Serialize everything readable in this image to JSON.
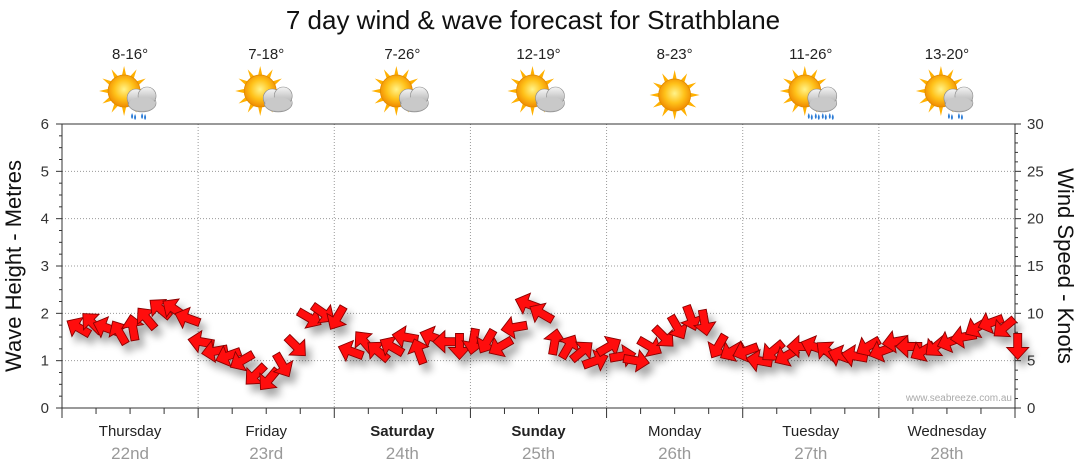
{
  "chart_data": {
    "type": "line",
    "title": "7 day wind & wave forecast for Strathblane",
    "left_axis": {
      "label": "Wave Height - Metres",
      "ylim": [
        0,
        6
      ],
      "ticks": [
        "0",
        "1",
        "2",
        "3",
        "4",
        "5",
        "6"
      ]
    },
    "right_axis": {
      "label": "Wind Speed - Knots",
      "ylim": [
        0,
        30
      ],
      "ticks": [
        "0",
        "5",
        "10",
        "15",
        "20",
        "25",
        "30"
      ]
    },
    "watermark": "www.seabreeze.com.au",
    "days": [
      {
        "name": "Thursday",
        "date": "22nd",
        "temp": "8-16°",
        "weather": "showers",
        "bold": false
      },
      {
        "name": "Friday",
        "date": "23rd",
        "temp": "7-18°",
        "weather": "partly-cloudy",
        "bold": false
      },
      {
        "name": "Saturday",
        "date": "24th",
        "temp": "7-26°",
        "weather": "partly-cloudy",
        "bold": true
      },
      {
        "name": "Sunday",
        "date": "25th",
        "temp": "12-19°",
        "weather": "partly-cloudy",
        "bold": true
      },
      {
        "name": "Monday",
        "date": "26th",
        "temp": "8-23°",
        "weather": "sunny",
        "bold": false
      },
      {
        "name": "Tuesday",
        "date": "27th",
        "temp": "11-26°",
        "weather": "rain",
        "bold": false
      },
      {
        "name": "Wednesday",
        "date": "28th",
        "temp": "13-20°",
        "weather": "showers",
        "bold": false
      }
    ],
    "wind_series": {
      "name": "Wind Speed (knots) with direction",
      "x_days": [
        0.0,
        0.1,
        0.2,
        0.3,
        0.4,
        0.5,
        0.6,
        0.7,
        0.8,
        0.9,
        1.0,
        1.1,
        1.2,
        1.3,
        1.4,
        1.5,
        1.6,
        1.7,
        1.8,
        1.9,
        2.0,
        2.1,
        2.2,
        2.3,
        2.4,
        2.5,
        2.6,
        2.7,
        2.8,
        2.9,
        3.0,
        3.1,
        3.2,
        3.3,
        3.4,
        3.5,
        3.6,
        3.7,
        3.8,
        3.9,
        4.0,
        4.1,
        4.2,
        4.3,
        4.4,
        4.5,
        4.6,
        4.7,
        4.8,
        4.9,
        5.0,
        5.1,
        5.2,
        5.3,
        5.4,
        5.5,
        5.6,
        5.7,
        5.8,
        5.9,
        6.0,
        6.1,
        6.2,
        6.3,
        6.4,
        6.5,
        6.6,
        6.7,
        6.8,
        6.9
      ],
      "knots": [
        8.5,
        9.0,
        8.5,
        8.0,
        8.5,
        9.5,
        10.5,
        10.5,
        9.5,
        7.0,
        6.0,
        5.5,
        5.0,
        3.5,
        3.0,
        4.5,
        6.5,
        9.5,
        10.0,
        9.5,
        6.0,
        7.0,
        6.0,
        6.5,
        7.5,
        6.0,
        7.5,
        7.0,
        6.5,
        7.0,
        7.0,
        6.5,
        8.5,
        11.0,
        10.0,
        7.0,
        6.5,
        6.0,
        5.0,
        6.5,
        5.5,
        5.0,
        6.5,
        7.5,
        8.5,
        9.5,
        9.0,
        6.5,
        6.0,
        6.0,
        5.0,
        6.0,
        5.5,
        6.5,
        6.5,
        6.0,
        5.5,
        5.5,
        6.5,
        6.0,
        7.0,
        6.5,
        6.0,
        6.5,
        7.0,
        7.5,
        8.5,
        9.0,
        8.5,
        6.5
      ],
      "direction_deg": [
        210,
        225,
        200,
        240,
        260,
        230,
        220,
        215,
        200,
        190,
        170,
        160,
        150,
        135,
        130,
        60,
        45,
        30,
        35,
        120,
        200,
        230,
        220,
        210,
        190,
        250,
        200,
        180,
        90,
        100,
        120,
        150,
        170,
        200,
        210,
        280,
        300,
        320,
        340,
        330,
        350,
        10,
        30,
        45,
        60,
        70,
        80,
        120,
        150,
        160,
        190,
        140,
        150,
        180,
        200,
        220,
        200,
        190,
        150,
        160,
        170,
        180,
        150,
        140,
        160,
        170,
        150,
        160,
        140,
        90
      ]
    }
  }
}
